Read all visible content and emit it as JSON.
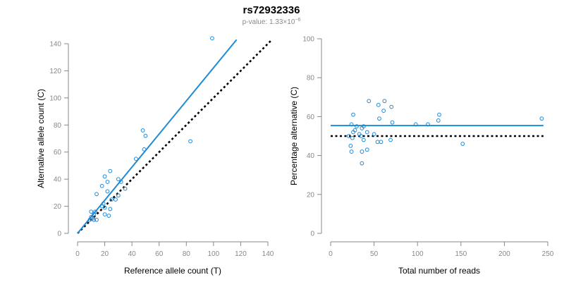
{
  "header": {
    "title": "rs72932336",
    "pvalue_prefix": "p-value: 1.33×10",
    "pvalue_exponent": "−6"
  },
  "colors": {
    "point": "#1f8ad6",
    "fit_line": "#1f8ad6",
    "reference_line": "#000000",
    "axis": "#888888"
  },
  "chart_data": [
    {
      "type": "scatter",
      "title": "",
      "xlabel": "Reference allele count (T)",
      "ylabel": "Alternative allele count (C)",
      "xlim": [
        0,
        140
      ],
      "ylim": [
        0,
        140
      ],
      "xticks": [
        0,
        20,
        40,
        60,
        80,
        100,
        120,
        140
      ],
      "yticks": [
        0,
        20,
        40,
        60,
        80,
        100,
        120,
        140
      ],
      "grid": false,
      "points": [
        {
          "x": 99,
          "y": 144
        },
        {
          "x": 48,
          "y": 76
        },
        {
          "x": 50,
          "y": 72
        },
        {
          "x": 83,
          "y": 68
        },
        {
          "x": 49,
          "y": 62
        },
        {
          "x": 43,
          "y": 55
        },
        {
          "x": 24,
          "y": 46
        },
        {
          "x": 20,
          "y": 42
        },
        {
          "x": 30,
          "y": 40
        },
        {
          "x": 32,
          "y": 38
        },
        {
          "x": 22,
          "y": 38
        },
        {
          "x": 18,
          "y": 35
        },
        {
          "x": 35,
          "y": 33
        },
        {
          "x": 22,
          "y": 31
        },
        {
          "x": 14,
          "y": 29
        },
        {
          "x": 30,
          "y": 28
        },
        {
          "x": 28,
          "y": 25
        },
        {
          "x": 25,
          "y": 25
        },
        {
          "x": 19,
          "y": 22
        },
        {
          "x": 18,
          "y": 20
        },
        {
          "x": 20,
          "y": 19
        },
        {
          "x": 24,
          "y": 18
        },
        {
          "x": 10,
          "y": 16
        },
        {
          "x": 13,
          "y": 16
        },
        {
          "x": 12,
          "y": 14
        },
        {
          "x": 20,
          "y": 14
        },
        {
          "x": 23,
          "y": 13
        },
        {
          "x": 10,
          "y": 12
        },
        {
          "x": 11,
          "y": 11
        },
        {
          "x": 9,
          "y": 10
        },
        {
          "x": 12,
          "y": 10
        },
        {
          "x": 14,
          "y": 10
        }
      ],
      "fit_line": {
        "x": [
          0,
          117
        ],
        "y": [
          0,
          143
        ]
      },
      "reference_line": {
        "x": [
          0,
          143
        ],
        "y": [
          0,
          143
        ]
      }
    },
    {
      "type": "scatter",
      "title": "",
      "xlabel": "Total number of reads",
      "ylabel": "Percentage alternative (C)",
      "xlim": [
        0,
        250
      ],
      "ylim": [
        0,
        100
      ],
      "xticks": [
        0,
        50,
        100,
        150,
        200,
        250
      ],
      "yticks": [
        0,
        20,
        40,
        60,
        80,
        100
      ],
      "grid": false,
      "points": [
        {
          "x": 44,
          "y": 68
        },
        {
          "x": 62,
          "y": 68
        },
        {
          "x": 55,
          "y": 66
        },
        {
          "x": 70,
          "y": 65
        },
        {
          "x": 61,
          "y": 63
        },
        {
          "x": 26,
          "y": 61
        },
        {
          "x": 125,
          "y": 61
        },
        {
          "x": 243,
          "y": 59
        },
        {
          "x": 56,
          "y": 59
        },
        {
          "x": 124,
          "y": 58
        },
        {
          "x": 71,
          "y": 57
        },
        {
          "x": 24,
          "y": 56
        },
        {
          "x": 98,
          "y": 56
        },
        {
          "x": 112,
          "y": 56
        },
        {
          "x": 38,
          "y": 55
        },
        {
          "x": 30,
          "y": 55
        },
        {
          "x": 36,
          "y": 54
        },
        {
          "x": 28,
          "y": 53
        },
        {
          "x": 26,
          "y": 52
        },
        {
          "x": 42,
          "y": 52
        },
        {
          "x": 33,
          "y": 51
        },
        {
          "x": 50,
          "y": 51
        },
        {
          "x": 21,
          "y": 50
        },
        {
          "x": 35,
          "y": 50
        },
        {
          "x": 25,
          "y": 49
        },
        {
          "x": 38,
          "y": 48
        },
        {
          "x": 69,
          "y": 48
        },
        {
          "x": 54,
          "y": 47
        },
        {
          "x": 58,
          "y": 47
        },
        {
          "x": 152,
          "y": 46
        },
        {
          "x": 23,
          "y": 45
        },
        {
          "x": 42,
          "y": 43
        },
        {
          "x": 24,
          "y": 42
        },
        {
          "x": 36,
          "y": 42
        },
        {
          "x": 36,
          "y": 36
        }
      ],
      "fit_line": {
        "x": [
          0,
          245
        ],
        "y": [
          55.4,
          55.4
        ]
      },
      "reference_line": {
        "x": [
          0,
          245
        ],
        "y": [
          50,
          50
        ]
      }
    }
  ]
}
